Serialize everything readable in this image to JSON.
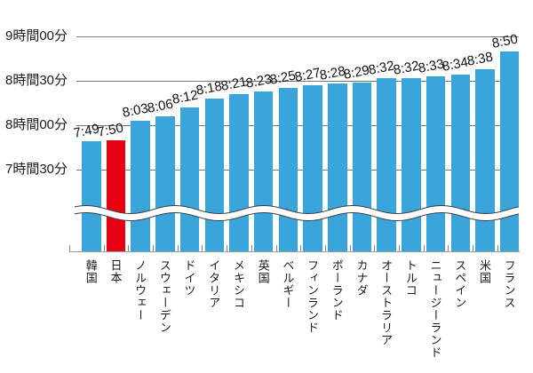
{
  "chart_data": {
    "type": "bar",
    "title": "",
    "description": "Average sleep duration by country; Japan highlighted; axis break between baseline and 7h30m",
    "y_axis": {
      "ticks": [
        {
          "label": "9時間00分",
          "time": "9:00"
        },
        {
          "label": "8時間30分",
          "time": "8:30"
        },
        {
          "label": "8時間00分",
          "time": "8:00"
        },
        {
          "label": "7時間30分",
          "time": "7:30"
        }
      ],
      "grid": true
    },
    "axis_break": true,
    "categories": [
      "韓国",
      "日本",
      "ノルウェー",
      "スウェーデン",
      "ドイツ",
      "イタリア",
      "メキシコ",
      "英国",
      "ベルギー",
      "フィンランド",
      "ポーランド",
      "カナダ",
      "オーストラリア",
      "トルコ",
      "ニュージーランド",
      "スペイン",
      "米国",
      "フランス"
    ],
    "values": [
      "7:49",
      "7:50",
      "8:03",
      "8:06",
      "8:12",
      "8:18",
      "8:21",
      "8:23",
      "8:25",
      "8:27",
      "8:28",
      "8:29",
      "8:32",
      "8:32",
      "8:33",
      "8:34",
      "8:38",
      "8:50"
    ],
    "highlight_category": "日本",
    "colors": {
      "bar": "#3aa5db",
      "highlight_bar": "#e60012",
      "gridline": "#777777",
      "axis_line": "#9a9a9a",
      "tick": "#8a8a8a",
      "wave_stroke": "#3f3f3f",
      "text": "#1a1a1a"
    }
  }
}
